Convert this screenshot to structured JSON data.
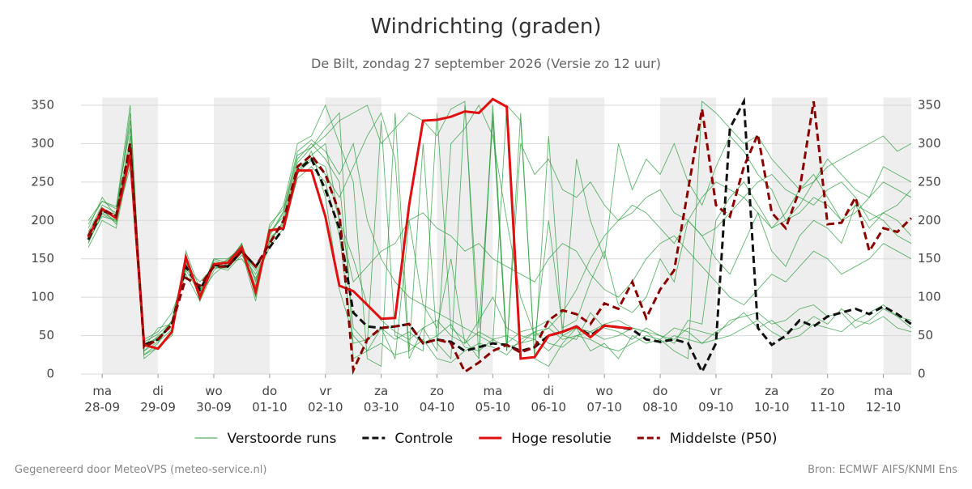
{
  "chart_data": {
    "type": "line",
    "title": "Windrichting (graden)",
    "subtitle": "De Bilt, zondag 27 september 2026 (Versie zo 12 uur)",
    "footer_left": "Gegenereerd door MeteoVPS (meteo-service.nl)",
    "footer_right": "Bron: ECMWF AIFS/KNMI Ens",
    "categories": [
      null,
      {
        "day": "ma",
        "date": "28-09"
      },
      null,
      null,
      null,
      {
        "day": "di",
        "date": "29-09"
      },
      null,
      null,
      null,
      {
        "day": "wo",
        "date": "30-09"
      },
      null,
      null,
      null,
      {
        "day": "do",
        "date": "01-10"
      },
      null,
      null,
      null,
      {
        "day": "vr",
        "date": "02-10"
      },
      null,
      null,
      null,
      {
        "day": "za",
        "date": "03-10"
      },
      null,
      null,
      null,
      {
        "day": "zo",
        "date": "04-10"
      },
      null,
      null,
      null,
      {
        "day": "ma",
        "date": "05-10"
      },
      null,
      null,
      null,
      {
        "day": "di",
        "date": "06-10"
      },
      null,
      null,
      null,
      {
        "day": "wo",
        "date": "07-10"
      },
      null,
      null,
      null,
      {
        "day": "do",
        "date": "08-10"
      },
      null,
      null,
      null,
      {
        "day": "vr",
        "date": "09-10"
      },
      null,
      null,
      null,
      {
        "day": "za",
        "date": "10-10"
      },
      null,
      null,
      null,
      {
        "day": "zo",
        "date": "11-10"
      },
      null,
      null,
      null,
      {
        "day": "ma",
        "date": "12-10"
      },
      null,
      null
    ],
    "ylim": [
      0,
      360
    ],
    "yticks": [
      0,
      50,
      100,
      150,
      200,
      250,
      300,
      350
    ],
    "y2ticks": [
      0,
      50,
      100,
      150,
      200,
      250,
      300,
      350
    ],
    "grid": true,
    "ensemble": {
      "name": "Verstoorde runs",
      "color": "#2e9e3e",
      "members": [
        [
          185,
          220,
          210,
          330,
          25,
          40,
          70,
          150,
          105,
          150,
          145,
          170,
          120,
          180,
          210,
          280,
          300,
          280,
          250,
          60,
          40,
          330,
          50,
          40,
          30,
          340,
          60,
          45,
          20,
          350,
          40,
          55,
          60,
          70,
          50,
          45,
          80,
          60,
          55,
          45,
          60,
          50,
          40,
          70,
          65,
          200,
          230,
          250,
          220,
          190,
          210,
          240,
          260,
          230,
          200,
          220,
          190,
          210,
          200,
          180
        ],
        [
          170,
          210,
          200,
          270,
          45,
          55,
          80,
          130,
          95,
          135,
          150,
          165,
          110,
          175,
          195,
          260,
          290,
          230,
          110,
          50,
          30,
          60,
          45,
          55,
          40,
          50,
          65,
          35,
          30,
          45,
          50,
          40,
          55,
          60,
          45,
          50,
          55,
          65,
          70,
          60,
          55,
          50,
          45,
          60,
          55,
          50,
          70,
          75,
          80,
          65,
          70,
          85,
          90,
          75,
          80,
          60,
          70,
          85,
          75,
          60
        ],
        [
          195,
          225,
          215,
          350,
          20,
          35,
          50,
          160,
          110,
          145,
          140,
          160,
          95,
          190,
          220,
          300,
          310,
          350,
          300,
          250,
          20,
          10,
          340,
          30,
          300,
          40,
          20,
          350,
          60,
          330,
          30,
          340,
          20,
          310,
          50,
          280,
          200,
          150,
          300,
          240,
          280,
          260,
          300,
          250,
          220,
          270,
          310,
          290,
          260,
          240,
          200,
          220,
          250,
          280,
          260,
          240,
          230,
          270,
          260,
          250
        ],
        [
          175,
          205,
          200,
          310,
          30,
          50,
          60,
          140,
          120,
          140,
          135,
          155,
          130,
          170,
          200,
          270,
          280,
          270,
          200,
          150,
          90,
          70,
          55,
          45,
          60,
          70,
          50,
          40,
          55,
          45,
          35,
          40,
          45,
          30,
          50,
          60,
          55,
          45,
          50,
          60,
          55,
          40,
          50,
          45,
          40,
          55,
          65,
          80,
          60,
          70,
          55,
          60,
          75,
          65,
          85,
          70,
          80,
          90,
          75,
          70
        ],
        [
          180,
          215,
          195,
          290,
          40,
          45,
          70,
          145,
          100,
          150,
          150,
          160,
          115,
          185,
          205,
          275,
          295,
          310,
          330,
          340,
          350,
          300,
          320,
          340,
          330,
          310,
          345,
          355,
          20,
          340,
          30,
          300,
          260,
          280,
          240,
          230,
          250,
          220,
          200,
          210,
          230,
          240,
          210,
          200,
          180,
          190,
          210,
          230,
          250,
          260,
          240,
          230,
          220,
          240,
          250,
          230,
          200,
          210,
          220,
          240
        ],
        [
          165,
          200,
          190,
          280,
          35,
          60,
          65,
          135,
          105,
          130,
          145,
          150,
          125,
          165,
          190,
          255,
          270,
          250,
          180,
          40,
          45,
          60,
          20,
          200,
          90,
          60,
          150,
          40,
          70,
          100,
          60,
          50,
          45,
          200,
          60,
          70,
          120,
          160,
          90,
          80,
          100,
          150,
          120,
          200,
          180,
          150,
          130,
          170,
          210,
          160,
          140,
          180,
          200,
          190,
          170,
          220,
          210,
          200,
          180,
          170
        ],
        [
          190,
          230,
          205,
          340,
          25,
          35,
          55,
          155,
          95,
          145,
          140,
          170,
          100,
          195,
          215,
          290,
          305,
          290,
          260,
          300,
          200,
          150,
          120,
          100,
          90,
          80,
          70,
          60,
          50,
          40,
          350,
          330,
          20,
          10,
          40,
          60,
          30,
          40,
          20,
          50,
          40,
          45,
          30,
          20,
          355,
          340,
          320,
          300,
          310,
          280,
          260,
          240,
          250,
          270,
          280,
          290,
          300,
          310,
          290,
          300
        ],
        [
          178,
          212,
          208,
          300,
          38,
          48,
          62,
          138,
          112,
          138,
          138,
          158,
          135,
          172,
          198,
          265,
          285,
          300,
          200,
          120,
          140,
          160,
          170,
          200,
          210,
          190,
          180,
          160,
          170,
          150,
          140,
          130,
          120,
          150,
          170,
          160,
          130,
          110,
          100,
          120,
          150,
          170,
          180,
          160,
          140,
          120,
          100,
          90,
          110,
          130,
          120,
          140,
          160,
          150,
          130,
          140,
          150,
          170,
          160,
          150
        ],
        [
          200,
          225,
          218,
          320,
          30,
          42,
          58,
          148,
          98,
          148,
          142,
          162,
          112,
          182,
          212,
          285,
          295,
          320,
          340,
          20,
          30,
          40,
          25,
          30,
          45,
          20,
          15,
          30,
          40,
          35,
          25,
          45,
          55,
          40,
          35,
          50,
          45,
          35,
          30,
          40,
          50,
          45,
          60,
          55,
          40,
          45,
          50,
          60,
          70,
          55,
          45,
          50,
          65,
          60,
          55,
          70,
          65,
          75,
          60,
          55
        ],
        [
          172,
          208,
          198,
          285,
          42,
          52,
          68,
          142,
          108,
          142,
          148,
          168,
          122,
          178,
          192,
          262,
          278,
          260,
          230,
          270,
          310,
          340,
          280,
          20,
          60,
          30,
          300,
          320,
          350,
          310,
          200,
          100,
          50,
          60,
          80,
          110,
          150,
          180,
          200,
          220,
          210,
          190,
          170,
          200,
          230,
          250,
          240,
          230,
          210,
          190,
          200,
          210,
          230,
          220,
          200,
          210,
          230,
          250,
          240,
          230
        ]
      ]
    },
    "series": [
      {
        "name": "Controle",
        "color": "#111111",
        "dashed": true,
        "values": [
          175,
          213,
          205,
          295,
          38,
          45,
          65,
          140,
          110,
          142,
          140,
          160,
          140,
          165,
          190,
          265,
          280,
          240,
          190,
          80,
          62,
          60,
          62,
          65,
          40,
          45,
          42,
          30,
          35,
          40,
          38,
          30,
          35,
          50,
          55,
          62,
          50,
          63,
          61,
          58,
          45,
          42,
          45,
          40,
          3,
          40,
          320,
          355,
          60,
          38,
          50,
          70,
          62,
          75,
          80,
          85,
          78,
          88,
          78,
          65
        ]
      },
      {
        "name": "Hoge resolutie",
        "color": "#e01010",
        "dashed": false,
        "values": [
          178,
          215,
          203,
          285,
          38,
          33,
          55,
          152,
          100,
          143,
          145,
          165,
          107,
          187,
          190,
          265,
          265,
          205,
          115,
          108,
          90,
          72,
          73,
          220,
          330,
          331,
          335,
          342,
          340,
          358,
          348,
          20,
          22,
          50,
          55,
          62,
          48,
          63,
          61,
          59,
          null,
          null,
          null,
          null,
          null,
          null,
          null,
          null,
          null,
          null,
          null,
          null,
          null,
          null,
          null,
          null,
          null,
          null,
          null,
          null
        ]
      },
      {
        "name": "Middelste (P50)",
        "color": "#8b0000",
        "dashed": true,
        "values": [
          180,
          215,
          205,
          300,
          35,
          45,
          65,
          125,
          115,
          140,
          140,
          160,
          140,
          170,
          200,
          270,
          285,
          260,
          210,
          5,
          45,
          60,
          62,
          65,
          40,
          45,
          40,
          3,
          15,
          30,
          38,
          28,
          35,
          70,
          83,
          78,
          65,
          92,
          85,
          120,
          73,
          110,
          135,
          240,
          345,
          220,
          205,
          270,
          312,
          210,
          190,
          240,
          355,
          195,
          197,
          230,
          160,
          190,
          185,
          203
        ]
      }
    ]
  }
}
